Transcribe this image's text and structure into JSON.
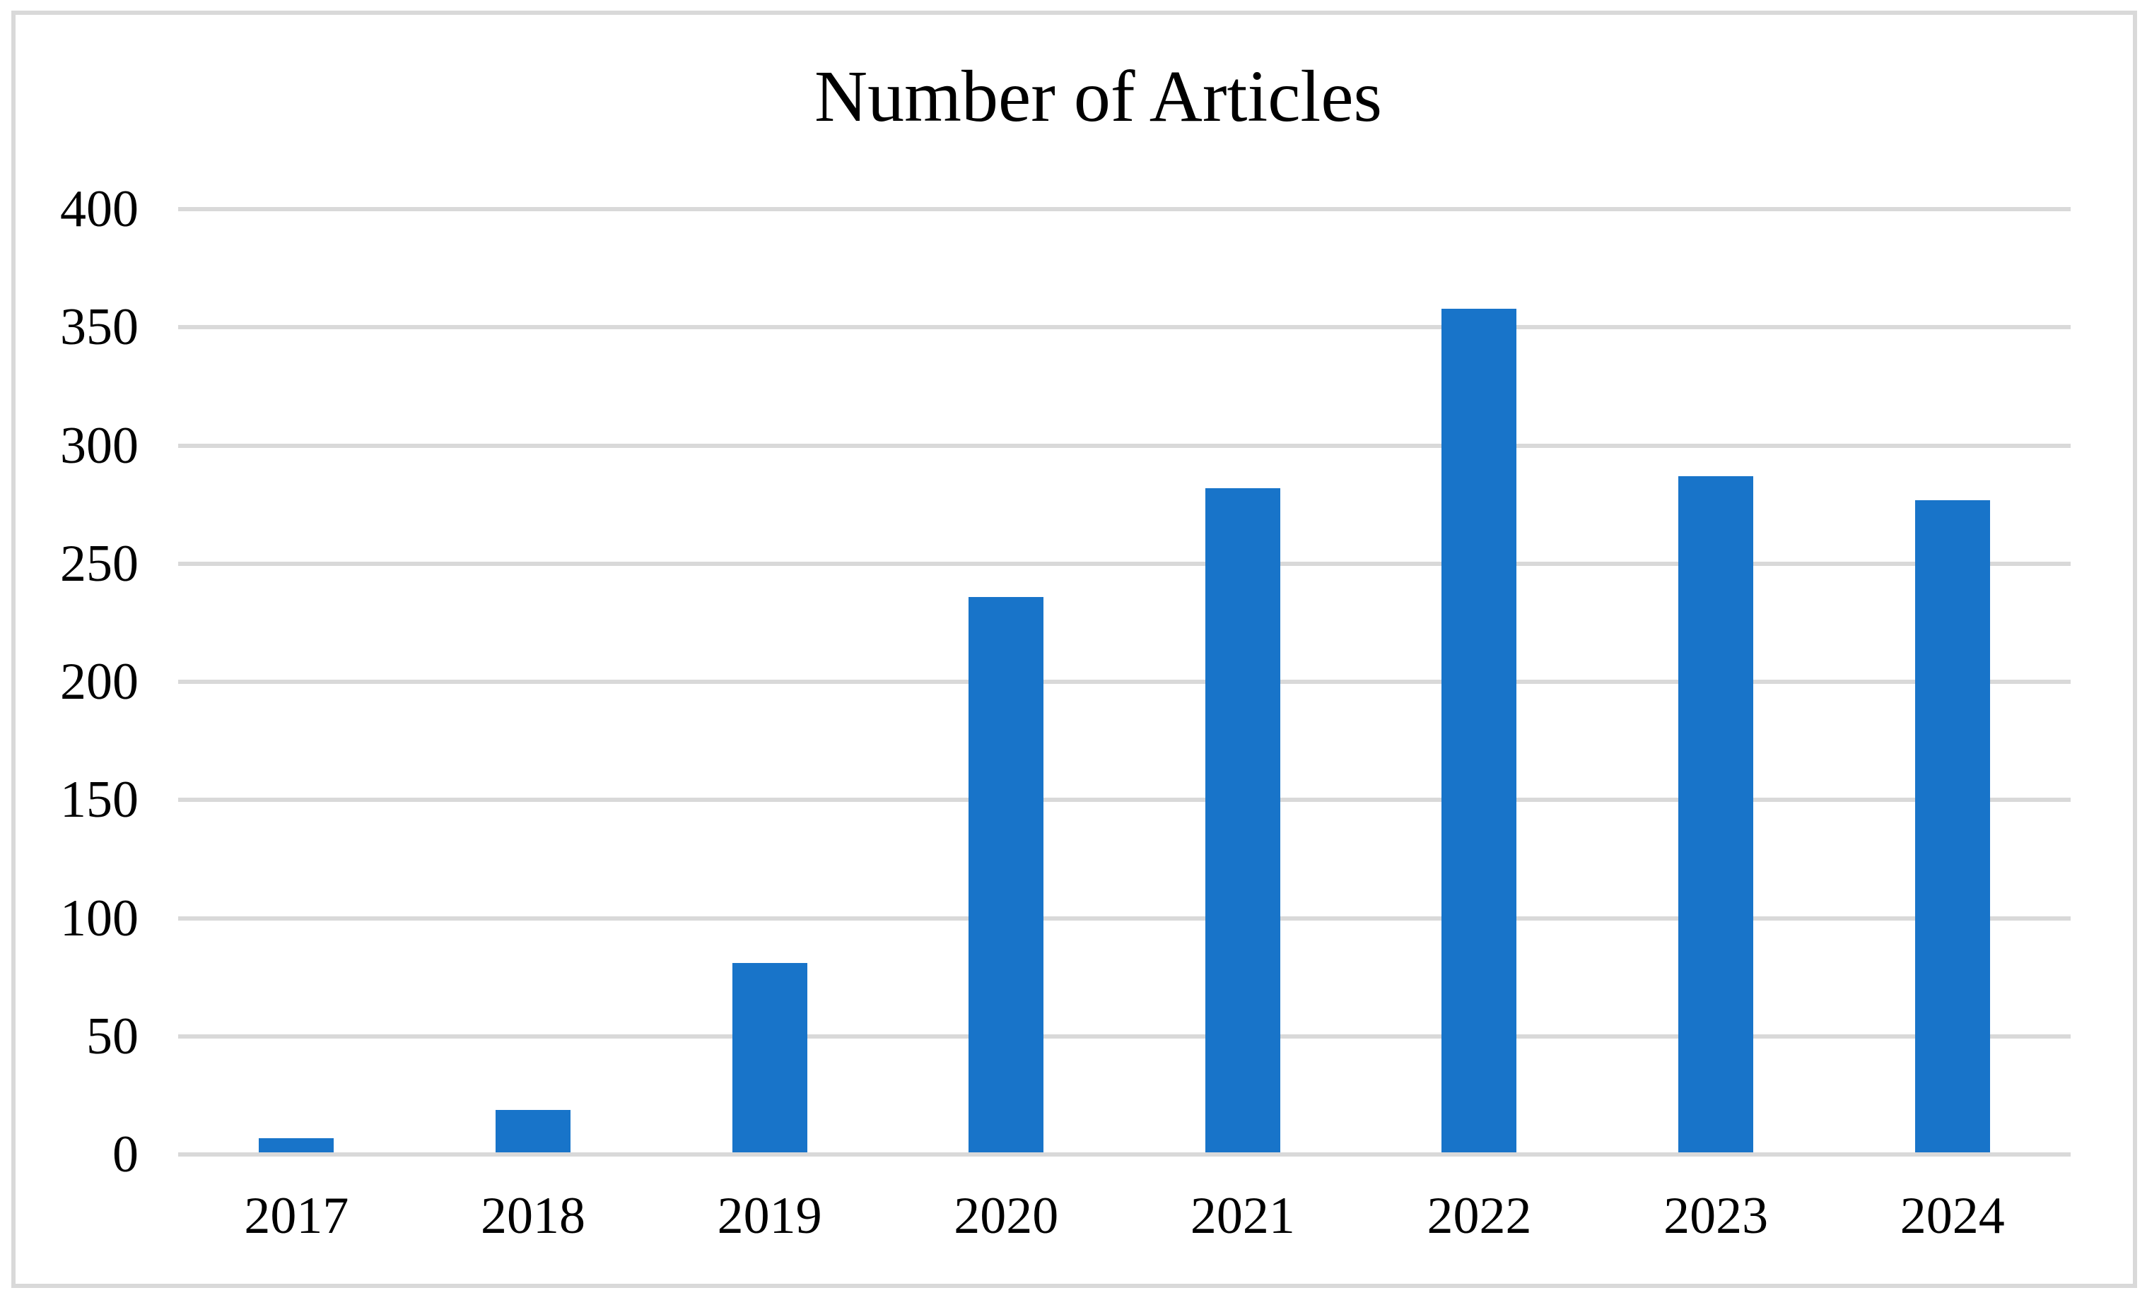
{
  "chart_data": {
    "type": "bar",
    "title": "Number of Articles",
    "categories": [
      "2017",
      "2018",
      "2019",
      "2020",
      "2021",
      "2022",
      "2023",
      "2024"
    ],
    "values": [
      6,
      18,
      80,
      235,
      281,
      357,
      286,
      276
    ],
    "xlabel": "",
    "ylabel": "",
    "ylim": [
      0,
      400
    ],
    "yticks": [
      0,
      50,
      100,
      150,
      200,
      250,
      300,
      350,
      400
    ],
    "grid": "horizontal",
    "legend": "none",
    "colors": {
      "bar_fill": "#1874C9",
      "gridline": "#D9D9D9",
      "frame_border": "#D9D9D9",
      "text": "#000000",
      "background": "#FFFFFF"
    }
  }
}
